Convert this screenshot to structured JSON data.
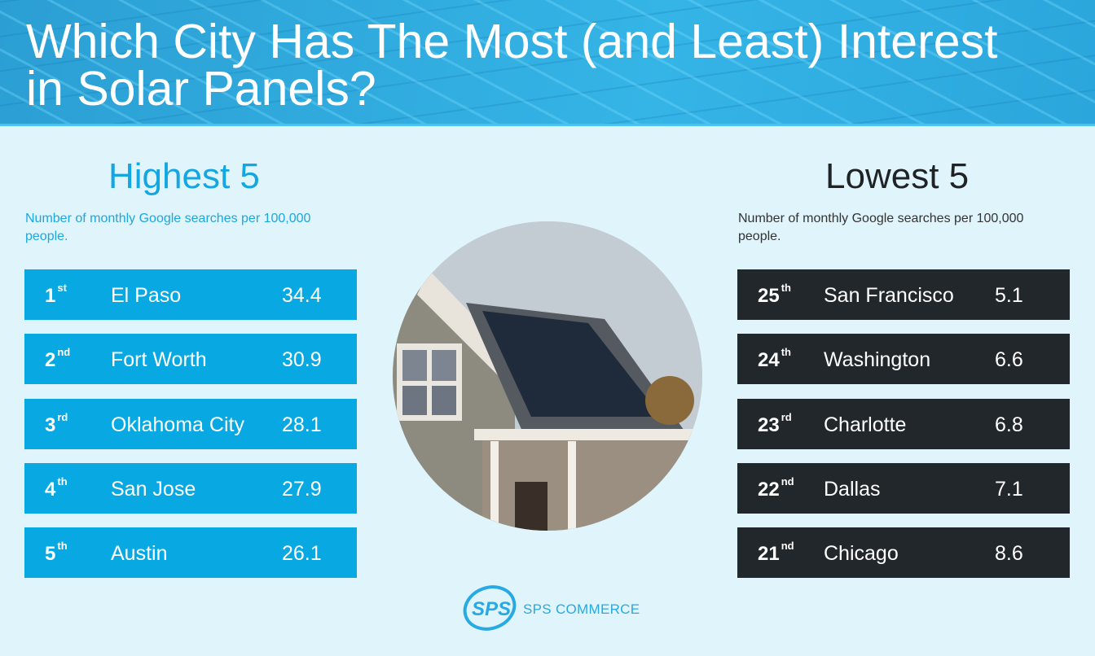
{
  "header": {
    "title": "Which City Has The Most (and Least) Interest in Solar Panels?"
  },
  "highest": {
    "title": "Highest 5",
    "subtitle": "Number of monthly Google searches per 100,000 people.",
    "rows": [
      {
        "rank": "1",
        "suffix": "st",
        "city": "El Paso",
        "value": "34.4"
      },
      {
        "rank": "2",
        "suffix": "nd",
        "city": "Fort Worth",
        "value": "30.9"
      },
      {
        "rank": "3",
        "suffix": "rd",
        "city": "Oklahoma City",
        "value": "28.1"
      },
      {
        "rank": "4",
        "suffix": "th",
        "city": "San Jose",
        "value": "27.9"
      },
      {
        "rank": "5",
        "suffix": "th",
        "city": "Austin",
        "value": "26.1"
      }
    ]
  },
  "lowest": {
    "title": "Lowest 5",
    "subtitle": "Number of monthly Google searches per 100,000 people.",
    "rows": [
      {
        "rank": "25",
        "suffix": "th",
        "city": "San Francisco",
        "value": "5.1"
      },
      {
        "rank": "24",
        "suffix": "th",
        "city": "Washington",
        "value": "6.6"
      },
      {
        "rank": "23",
        "suffix": "rd",
        "city": "Charlotte",
        "value": "6.8"
      },
      {
        "rank": "22",
        "suffix": "nd",
        "city": "Dallas",
        "value": "7.1"
      },
      {
        "rank": "21",
        "suffix": "nd",
        "city": "Chicago",
        "value": "8.6"
      }
    ]
  },
  "footer": {
    "logo_text": "SPS COMMERCE",
    "logo_mark": "SPS"
  },
  "colors": {
    "accent": "#08a8e2",
    "dark": "#22272c",
    "background": "#e0f4fc"
  }
}
